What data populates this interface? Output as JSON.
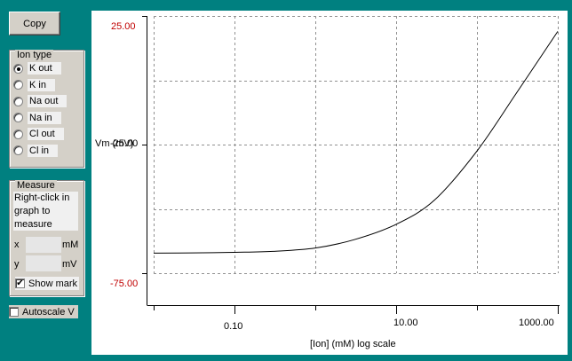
{
  "toolbar": {
    "copy_label": "Copy"
  },
  "ion_type": {
    "title": "Ion type",
    "options": [
      {
        "label": "K out",
        "selected": true
      },
      {
        "label": "K in",
        "selected": false
      },
      {
        "label": "Na out",
        "selected": false
      },
      {
        "label": "Na in",
        "selected": false
      },
      {
        "label": "Cl out",
        "selected": false
      },
      {
        "label": "Cl in",
        "selected": false
      }
    ]
  },
  "measure": {
    "title": "Measure",
    "hint": "Right-click in graph to measure",
    "x_label": "x",
    "x_unit": "mM",
    "y_label": "y",
    "y_unit": "mV",
    "show_mark_label": "Show mark",
    "show_mark_checked": true
  },
  "autoscale": {
    "label": "Autoscale V",
    "checked": false
  },
  "colors": {
    "background": "#008080",
    "axis_extreme": "#c00000",
    "curve": "#000000"
  },
  "chart_data": {
    "type": "line",
    "xlabel": "[Ion] (mM) log scale",
    "ylabel": "Vm (mV)",
    "x_scale": "log",
    "xlim": [
      0.01,
      1000
    ],
    "ylim": [
      -75,
      25
    ],
    "x_tick_labels": [
      "0.10",
      "10.00",
      "1000.00"
    ],
    "y_tick_labels": [
      "25.00",
      "-25.00",
      "-75.00"
    ],
    "grid": true,
    "series": [
      {
        "x": [
          0.01,
          0.03,
          0.1,
          0.3,
          1,
          3,
          10,
          30,
          100,
          300,
          1000
        ],
        "y": [
          -67.2,
          -67.1,
          -66.9,
          -66.5,
          -65.2,
          -62,
          -56,
          -46.5,
          -27.5,
          -5.5,
          19
        ]
      }
    ]
  }
}
